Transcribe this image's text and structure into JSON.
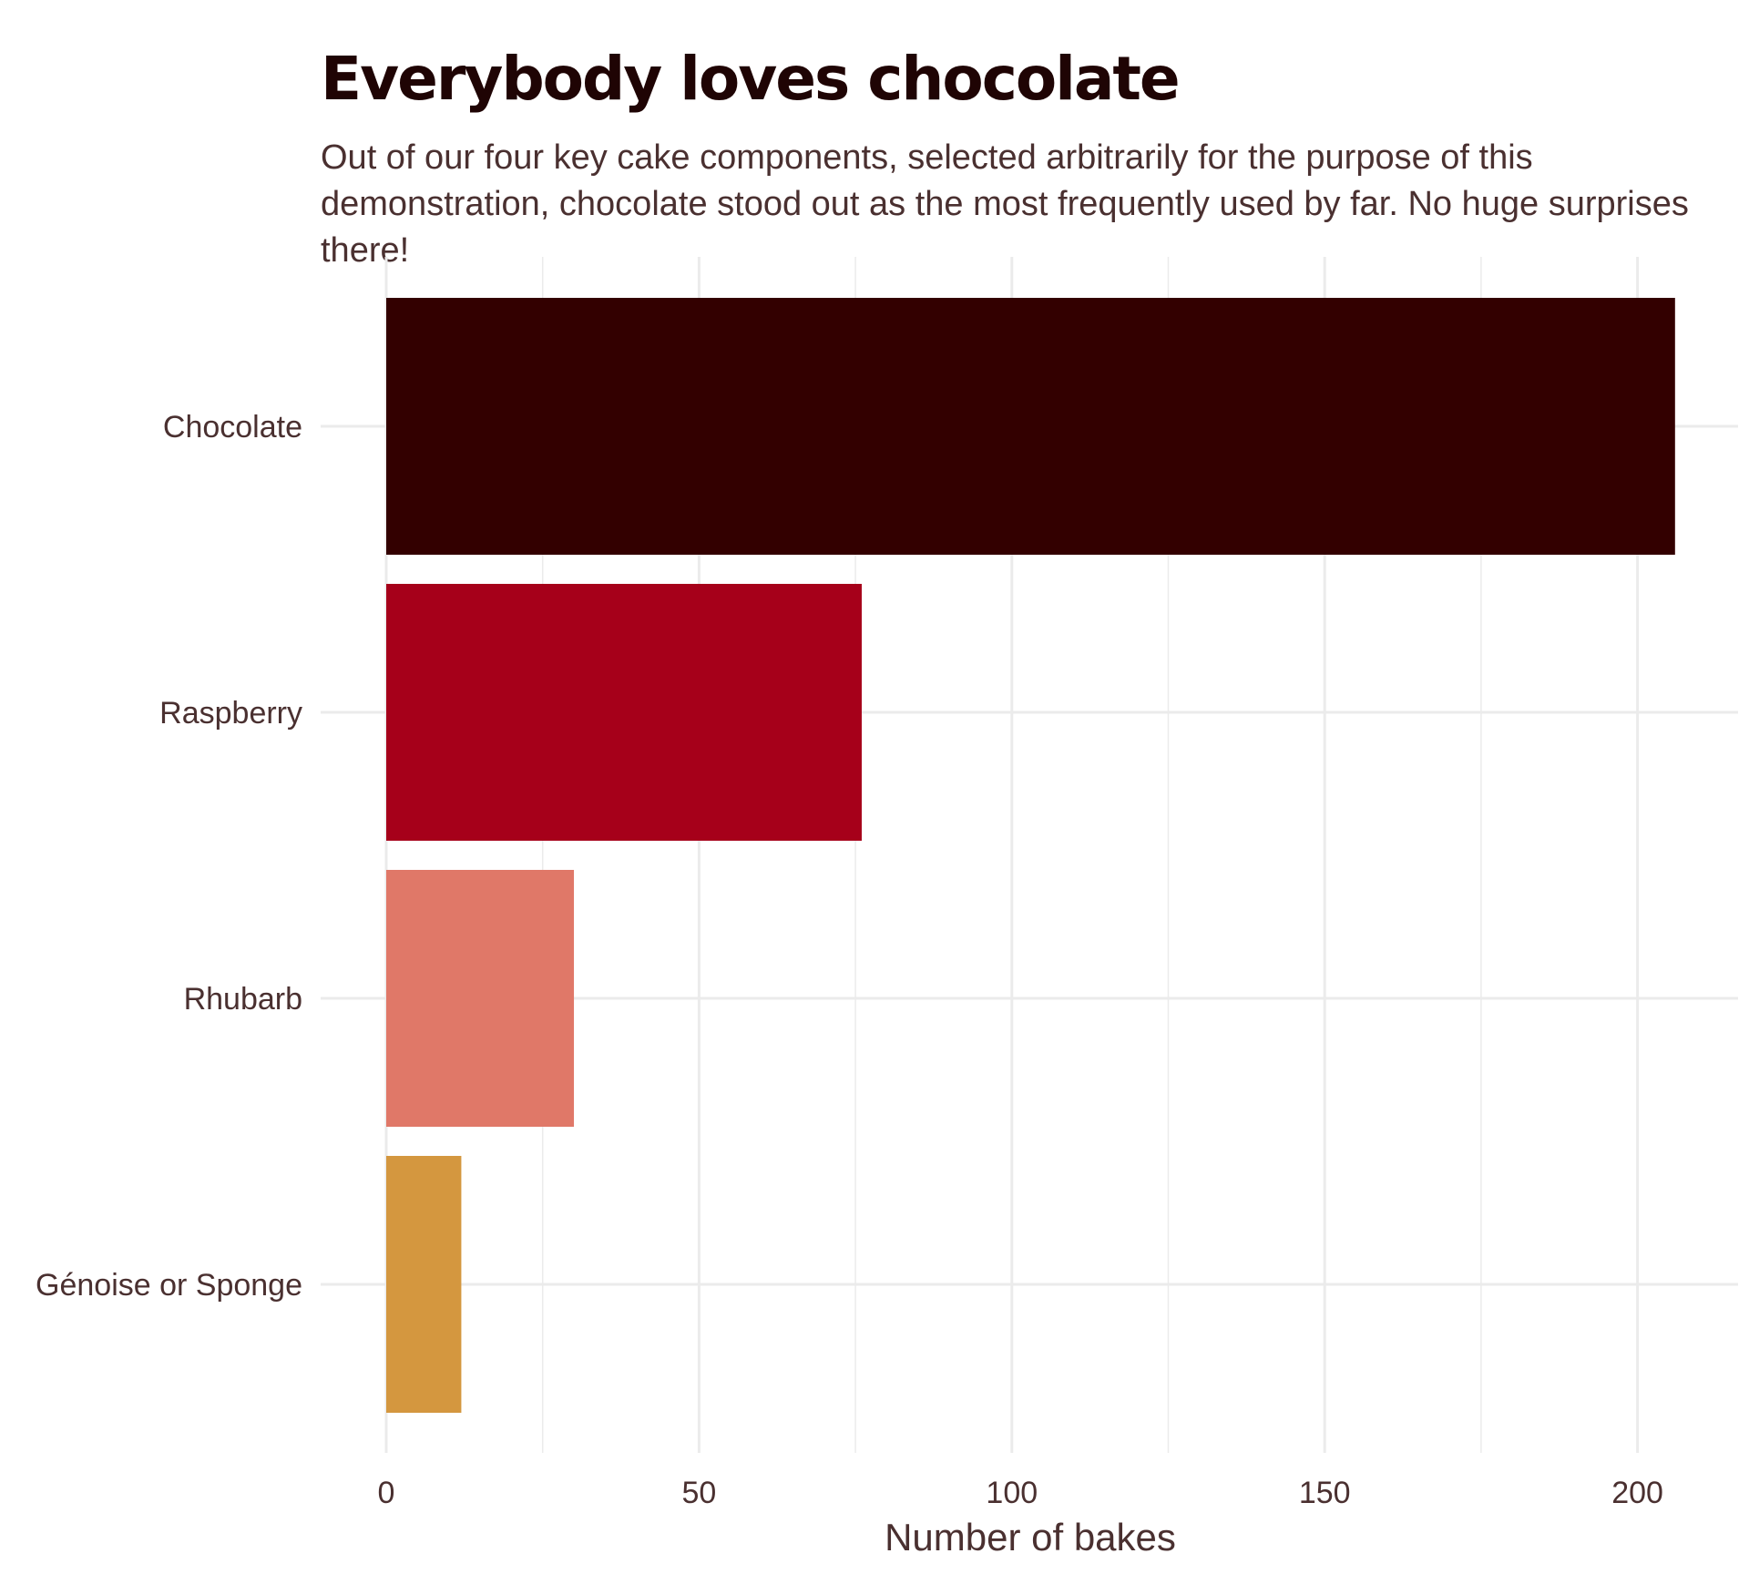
{
  "chart_data": {
    "type": "bar",
    "orientation": "horizontal",
    "title": "Everybody loves chocolate",
    "subtitle": "Out of our four key cake components, selected arbitrarily for the purpose of this demonstration, chocolate stood out as the most frequently used by far. No huge surprises there!",
    "categories": [
      "Chocolate",
      "Raspberry",
      "Rhubarb",
      "Génoise or Sponge"
    ],
    "values": [
      206,
      76,
      30,
      12
    ],
    "bar_colors": [
      "#330000",
      "#a6001a",
      "#e07868",
      "#d4973f"
    ],
    "xlabel": "Number of bakes",
    "ylabel": "",
    "xlim": [
      0,
      210
    ],
    "x_ticks": [
      0,
      50,
      100,
      150,
      200
    ],
    "x_tick_labels": [
      "0",
      "50",
      "100",
      "150",
      "200"
    ],
    "grid": true,
    "legend": "none"
  }
}
